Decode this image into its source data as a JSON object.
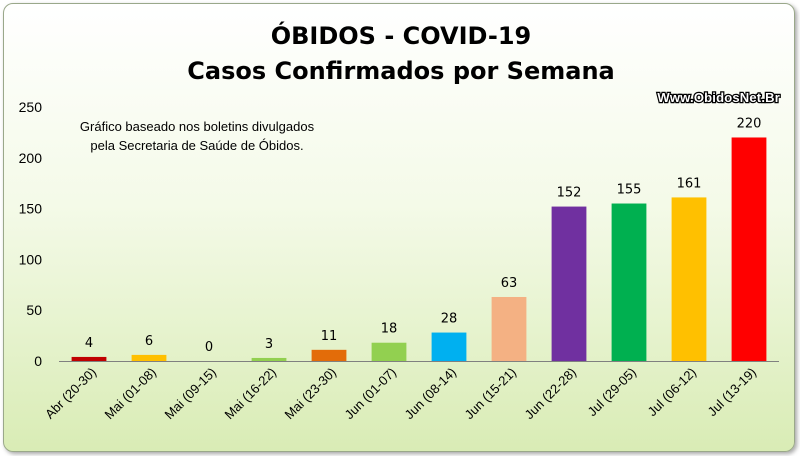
{
  "chart_data": {
    "type": "bar",
    "title": "ÓBIDOS - COVID-19",
    "subtitle": "Casos Confirmados por Semana",
    "watermark": "Www.ObidosNet.Br",
    "note": [
      "Gráfico baseado nos boletins divulgados",
      "pela Secretaria de Saúde de Óbidos."
    ],
    "categories": [
      "Abr (20-30)",
      "Mai (01-08)",
      "Mai (09-15)",
      "Mai (16-22)",
      "Mai (23-30)",
      "Jun (01-07)",
      "Jun (08-14)",
      "Jun (15-21)",
      "Jun (22-28)",
      "Jul (29-05)",
      "Jul (06-12)",
      "Jul (13-19)"
    ],
    "values": [
      4,
      6,
      0,
      3,
      11,
      18,
      28,
      63,
      152,
      155,
      161,
      220
    ],
    "colors": [
      "#c00000",
      "#ffc000",
      "#92d050",
      "#92d050",
      "#e36c09",
      "#92d050",
      "#00b0f0",
      "#f4b183",
      "#7030a0",
      "#00b050",
      "#ffc000",
      "#ff0000"
    ],
    "ylim": [
      0,
      250
    ],
    "yticks": [
      0,
      50,
      100,
      150,
      200,
      250
    ],
    "grid": false,
    "legend": "none"
  }
}
